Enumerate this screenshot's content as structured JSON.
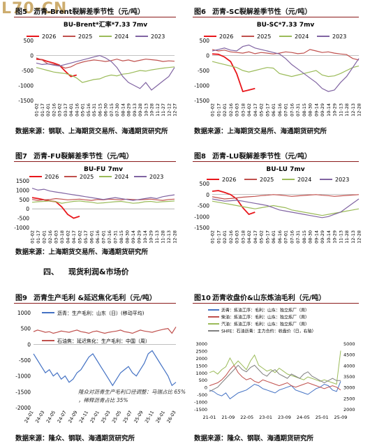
{
  "watermark": "L70-CN",
  "figures": [
    {
      "id": "fig5",
      "number": "图5",
      "title": "沥青-Brent裂解差季节性（元/吨）",
      "source": "数据来源：钢联、上海期货交易所、海通期货研究所",
      "chart_data": {
        "type": "line",
        "title": "BU-Brent*汇率*7.33 7mv",
        "yticks": [
          500,
          0,
          -500,
          -1000,
          -1500
        ],
        "ylim": [
          -1500,
          500
        ],
        "x_tick_labels": [
          "01-02",
          "01-17",
          "02-01",
          "02-16",
          "03-02",
          "03-17",
          "04-01",
          "04-16",
          "05-01",
          "05-16",
          "05-31",
          "06-15",
          "06-30",
          "07-15",
          "07-30",
          "08-14",
          "08-29",
          "09-13",
          "09-28",
          "10-13",
          "10-28",
          "11-12",
          "11-27",
          "12-12",
          "12-27"
        ],
        "legend": [
          "2026",
          "2025",
          "2024",
          "2023"
        ],
        "colors": {
          "2026": "#e8161b",
          "2025": "#c0504d",
          "2024": "#9bbb59",
          "2023": "#8064a2"
        },
        "series": [
          {
            "name": "2026",
            "values": [
              -120,
              -140,
              -200,
              -250,
              -320,
              -520,
              -700,
              -650
            ]
          },
          {
            "name": "2025",
            "values": [
              -80,
              -150,
              -280,
              -300,
              -330,
              -420,
              -380,
              -280,
              -220,
              -180,
              -150,
              -170,
              -200,
              -170,
              -120,
              -180,
              -150,
              -200,
              -160,
              -120,
              -140,
              -160,
              -200,
              -180,
              -190
            ]
          },
          {
            "name": "2024",
            "values": [
              -400,
              -450,
              -500,
              -550,
              -580,
              -600,
              -650,
              -750,
              -900,
              -850,
              -800,
              -780,
              -700,
              -650,
              -680,
              -620,
              -600,
              -550,
              -500,
              -520,
              -480,
              -450,
              -420,
              -400,
              -380
            ]
          },
          {
            "name": "2023",
            "values": [
              -250,
              -300,
              -280,
              -320,
              -350,
              -300,
              -250,
              -200,
              -150,
              -100,
              -50,
              0,
              -80,
              -200,
              -400,
              -700,
              -900,
              -1000,
              -1100,
              -900,
              -1150,
              -1000,
              -850,
              -700,
              -400
            ]
          }
        ]
      }
    },
    {
      "id": "fig6",
      "number": "图6",
      "title": "沥青-SC裂解差季节性（元/吨）",
      "source": "数据来源：上海期货交易所、海通期货研究所",
      "chart_data": {
        "type": "line",
        "title": "BU-SC*7.33 7mv",
        "yticks": [
          500,
          0,
          -500,
          -1000,
          -1500
        ],
        "ylim": [
          -1500,
          500
        ],
        "x_tick_labels": [
          "01-02",
          "01-17",
          "02-01",
          "02-16",
          "03-03",
          "03-18",
          "04-02",
          "04-17",
          "05-02",
          "05-17",
          "06-01",
          "06-16",
          "07-01",
          "07-16",
          "07-31",
          "08-15",
          "08-30",
          "09-14",
          "09-29",
          "10-14",
          "10-29",
          "11-13",
          "11-28",
          "12-13",
          "12-28"
        ],
        "legend": [
          "2026",
          "2025",
          "2024",
          "2023"
        ],
        "colors": {
          "2026": "#e8161b",
          "2025": "#c0504d",
          "2024": "#9bbb59",
          "2023": "#8064a2"
        },
        "series": [
          {
            "name": "2026",
            "values": [
              50,
              40,
              -50,
              -200,
              -600,
              -1200,
              -1150,
              -1100
            ]
          },
          {
            "name": "2025",
            "values": [
              200,
              150,
              180,
              120,
              100,
              80,
              120,
              60,
              100,
              80,
              50,
              80,
              120,
              100,
              60,
              80,
              200,
              150,
              100,
              120,
              80,
              50,
              30,
              -100,
              -150
            ]
          },
          {
            "name": "2024",
            "values": [
              -200,
              -250,
              -300,
              -350,
              -400,
              -500,
              -550,
              -500,
              -450,
              -400,
              -420,
              -600,
              -650,
              -700,
              -650,
              -600,
              -550,
              -500,
              -650,
              -700,
              -680,
              -600,
              -500,
              -400,
              -350
            ]
          },
          {
            "name": "2023",
            "values": [
              150,
              200,
              250,
              180,
              150,
              300,
              350,
              250,
              200,
              150,
              100,
              50,
              -100,
              -300,
              -450,
              -600,
              -750,
              -900,
              -1100,
              -1200,
              -1150,
              -900,
              -700,
              -400,
              -100
            ]
          }
        ]
      }
    },
    {
      "id": "fig7",
      "number": "图7",
      "title": "沥青-FU裂解差季节性（元/吨）",
      "source": "数据来源：上海期货交易所、海通期货研究所",
      "chart_data": {
        "type": "line",
        "title": "BU-FU 7mv",
        "yticks": [
          1500,
          1000,
          500,
          0,
          -500,
          -1000
        ],
        "ylim": [
          -1000,
          1500
        ],
        "x_tick_labels": [
          "01-02",
          "01-17",
          "02-01",
          "02-16",
          "03-03",
          "03-18",
          "04-02",
          "04-17",
          "05-02",
          "05-17",
          "06-01",
          "06-16",
          "07-01",
          "07-16",
          "07-31",
          "08-15",
          "08-30",
          "09-14",
          "09-29",
          "10-14",
          "10-29",
          "11-13",
          "11-28",
          "12-13",
          "12-28"
        ],
        "legend": [
          "2026",
          "2025",
          "2024",
          "2023"
        ],
        "colors": {
          "2026": "#e8161b",
          "2025": "#c0504d",
          "2024": "#9bbb59",
          "2023": "#8064a2"
        },
        "series": [
          {
            "name": "2026",
            "values": [
              600,
              550,
              480,
              420,
              380,
              100,
              -300,
              -500,
              -400
            ]
          },
          {
            "name": "2025",
            "values": [
              500,
              450,
              480,
              500,
              550,
              520,
              480,
              500,
              520,
              480,
              450,
              500,
              480,
              520,
              500,
              480,
              520,
              500,
              480,
              500,
              520,
              480,
              450,
              500,
              520
            ]
          },
          {
            "name": "2024",
            "values": [
              350,
              380,
              400,
              420,
              380,
              300,
              350,
              400,
              420,
              380,
              350,
              300,
              320,
              350,
              380,
              400,
              350,
              300,
              320,
              380,
              400,
              350,
              380,
              400,
              420
            ]
          },
          {
            "name": "2023",
            "values": [
              1100,
              1000,
              1050,
              950,
              900,
              850,
              800,
              750,
              700,
              650,
              600,
              550,
              500,
              550,
              600,
              550,
              500,
              450,
              500,
              550,
              600,
              550,
              650,
              700,
              750
            ]
          }
        ]
      }
    },
    {
      "id": "fig8",
      "number": "图8",
      "title": "沥青-LU裂解差季节性（元/吨）",
      "source": "数据来源：上海期货交易所、海通期货研究所",
      "chart_data": {
        "type": "line",
        "title": "BU-LU 7mv",
        "yticks": [
          500,
          0,
          -500,
          -1000,
          -1500
        ],
        "ylim": [
          -1500,
          500
        ],
        "x_tick_labels": [
          "01-02",
          "01-17",
          "02-01",
          "02-16",
          "03-03",
          "03-18",
          "04-02",
          "04-17",
          "05-02",
          "05-17",
          "06-01",
          "06-16",
          "07-01",
          "07-16",
          "07-31",
          "08-15",
          "08-30",
          "09-14",
          "09-29",
          "10-14",
          "10-29",
          "11-13",
          "11-28",
          "12-13",
          "12-28"
        ],
        "legend": [
          "2026",
          "2025",
          "2024",
          "2023"
        ],
        "colors": {
          "2026": "#e8161b",
          "2025": "#c0504d",
          "2024": "#9bbb59",
          "2023": "#8064a2"
        },
        "series": [
          {
            "name": "2026",
            "values": [
              150,
              180,
              100,
              0,
              -200,
              -600,
              -900,
              -800
            ]
          },
          {
            "name": "2025",
            "values": [
              -100,
              -150,
              -200,
              -180,
              -150,
              -120,
              -100,
              -80,
              -50,
              -30,
              0,
              -20,
              -50,
              -80,
              -60,
              -40,
              -20,
              0,
              -30,
              -50,
              -80,
              -60,
              -40,
              -20,
              0
            ]
          },
          {
            "name": "2024",
            "values": [
              -300,
              -350,
              -400,
              -450,
              -500,
              -550,
              -600,
              -650,
              -600,
              -550,
              -500,
              -550,
              -600,
              -700,
              -750,
              -800,
              -850,
              -900,
              -950,
              -900,
              -850,
              -800,
              -750,
              -700,
              -650
            ]
          },
          {
            "name": "2023",
            "values": [
              -200,
              -250,
              -300,
              -280,
              -260,
              -300,
              -350,
              -400,
              -450,
              -500,
              -600,
              -700,
              -750,
              -800,
              -850,
              -900,
              -950,
              -1000,
              -1050,
              -1000,
              -900,
              -800,
              -600,
              -400,
              -200
            ]
          }
        ]
      }
    },
    {
      "id": "fig9",
      "number": "图9",
      "title": "沥青生产毛利 &延迟焦化毛利（元/吨）",
      "source": "数据来源：隆众、钢联、海通期货研究所",
      "annotation": "隆众对沥青生产毛利口径调整：马瑞占比 65%，稀释沥青占比 35%",
      "chart_data": {
        "type": "line",
        "yticks": [
          1000,
          500,
          0,
          -500,
          -1000,
          -1500,
          -2000
        ],
        "ylim": [
          -2000,
          1000
        ],
        "x_tick_labels": [
          "24-01",
          "24-03",
          "24-05",
          "24-07",
          "24-09",
          "24-11",
          "25-01",
          "25-03",
          "25-05",
          "25-07",
          "25-09",
          "25-11",
          "26-01",
          "26-03"
        ],
        "legend": [
          "沥青：生产毛利：山东（日）(移动平均)",
          "石油焦：延迟焦化：生产毛利：中国（周）"
        ],
        "colors": {
          "bitumen": "#4472c4",
          "coking": "#c0504d"
        },
        "series": [
          {
            "name": "沥青：生产毛利：山东（日）(移动平均)",
            "values": [
              -300,
              -500,
              -700,
              -900,
              -800,
              -1000,
              -900,
              -1100,
              -1000,
              -1200,
              -1100,
              -900,
              -800,
              -600,
              -400,
              -300,
              -500,
              -700,
              -900,
              -1100,
              -1300,
              -1100,
              -900,
              -800,
              -700,
              -900,
              -1000,
              -800,
              -600,
              -300,
              -200,
              -400,
              -600,
              -800,
              -1000,
              -1300,
              -1200
            ]
          },
          {
            "name": "石油焦：延迟焦化：生产毛利：中国（周）",
            "values": [
              400,
              450,
              420,
              380,
              400,
              350,
              380,
              420,
              400,
              380,
              420,
              450,
              400,
              380,
              350,
              400,
              420,
              380,
              350,
              380,
              400,
              420,
              450,
              400,
              380,
              350,
              400,
              450,
              420,
              400,
              380,
              420,
              450,
              480,
              500,
              350,
              550
            ]
          }
        ]
      }
    },
    {
      "id": "fig10",
      "number": "图10",
      "title": "沥青收盘价&山东炼油毛利（元/吨）",
      "source": "数据来源：隆众、钢联、海通期货研究所",
      "chart_data": {
        "type": "line",
        "yticks_left": [
          3000,
          2500,
          2000,
          1500,
          1000,
          500,
          0,
          -500,
          -1000,
          -1500
        ],
        "ylim_left": [
          -1500,
          3000
        ],
        "yticks_right": [
          5000,
          4500,
          4000,
          3500,
          3000,
          2500,
          2000
        ],
        "ylim_right": [
          2000,
          5000
        ],
        "x_tick_labels": [
          "21-01",
          "21-09",
          "22-05",
          "23-01",
          "23-09",
          "24-05",
          "25-01",
          "25-09"
        ],
        "legend": [
          "沥青：炼油工序：毛利：山东：独立炼厂（周）",
          "柴油：炼油工序：毛利：山东：独立炼厂（周）",
          "汽油：炼油工序：毛利：山东：独立炼厂（周）",
          "SHFE：石油沥青：主力合约：收盘价（日，右轴）"
        ],
        "colors": {
          "asphalt": "#4472c4",
          "diesel": "#c0504d",
          "gasoline": "#9bbb59",
          "shfe": "#7f7f7f"
        },
        "series": [
          {
            "name": "沥青：炼油工序：毛利：山东：独立炼厂（周）",
            "values": [
              -200,
              -300,
              -500,
              -600,
              -400,
              -800,
              -600,
              -400,
              -300,
              -200,
              0,
              200,
              100,
              -100,
              -200,
              -300,
              -400,
              -200,
              -100,
              0,
              100,
              -200,
              -300,
              -400,
              -500,
              -300,
              -100,
              0,
              200,
              100,
              -200,
              -300,
              400
            ]
          },
          {
            "name": "柴油：炼油工序：毛利：山东：独立炼厂（周）",
            "values": [
              100,
              200,
              300,
              500,
              800,
              1200,
              1500,
              1000,
              700,
              500,
              600,
              400,
              300,
              500,
              400,
              300,
              200,
              100,
              200,
              300,
              100,
              0,
              100,
              200,
              300,
              200,
              100,
              0,
              -100,
              0,
              100,
              0,
              -200
            ]
          },
          {
            "name": "汽油：炼油工序：毛利：山东：独立炼厂（周）",
            "values": [
              1000,
              1100,
              900,
              1200,
              1400,
              2000,
              1500,
              1800,
              1500,
              1200,
              1800,
              2200,
              1500,
              1300,
              1100,
              1200,
              1000,
              1300,
              1100,
              900,
              800,
              700,
              600,
              500,
              700,
              600,
              500,
              400,
              500,
              400,
              300,
              200,
              2500
            ]
          },
          {
            "name": "SHFE：石油沥青：主力合约：收盘价（日，右轴）",
            "values": [
              2800,
              2900,
              3000,
              3200,
              3400,
              3600,
              3800,
              4000,
              3800,
              3700,
              3900,
              4000,
              3800,
              3600,
              3500,
              3700,
              3800,
              3600,
              3500,
              3400,
              3600,
              3500,
              3400,
              3600,
              3700,
              3500,
              3400,
              3300,
              3200,
              3300,
              3400,
              3300,
              3300
            ]
          }
        ]
      }
    }
  ],
  "section": {
    "number": "四、",
    "title": "现货利润&市场价"
  }
}
